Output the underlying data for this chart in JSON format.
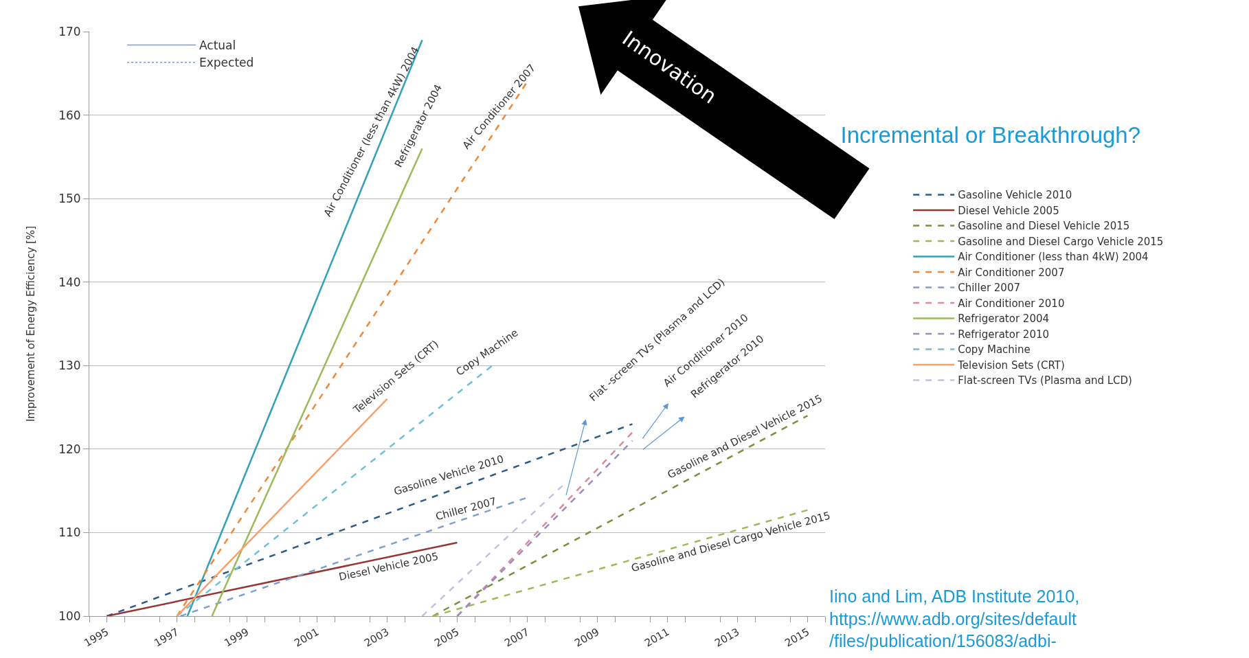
{
  "chart_data": {
    "type": "line",
    "title": "Incremental or Breakthrough?",
    "ylabel": "Improvement of Energy Efficiency [%]",
    "xlim": [
      1994.5,
      2015.5
    ],
    "xticks": [
      1995,
      1997,
      1999,
      2001,
      2003,
      2005,
      2007,
      2009,
      2011,
      2013,
      2015
    ],
    "ylim": [
      100,
      170
    ],
    "yticks": [
      100,
      110,
      120,
      130,
      140,
      150,
      160,
      170
    ],
    "grid": "y",
    "legend": "right",
    "marker": "none",
    "series": [
      {
        "name": "Gasoline Vehicle 2010",
        "color": "#2e5b8a",
        "line_style": "dashed",
        "x": [
          1995.0,
          2010.0
        ],
        "values": [
          100,
          123
        ]
      },
      {
        "name": "Diesel Vehicle 2005",
        "color": "#943634",
        "line_style": "solid",
        "x": [
          1995.0,
          2005.0
        ],
        "values": [
          100,
          108.8
        ]
      },
      {
        "name": "Gasoline and Diesel Vehicle 2015",
        "color": "#76923c",
        "line_style": "dashed",
        "x": [
          2004.3,
          2015.0
        ],
        "values": [
          100,
          124
        ]
      },
      {
        "name": "Gasoline and Diesel Cargo Vehicle 2015",
        "color": "#9bbb59",
        "line_style": "dashed",
        "x": [
          2004.3,
          2015.0
        ],
        "values": [
          100,
          112.7
        ]
      },
      {
        "name": "Air Conditioner (less than 4kW) 2004",
        "color": "#31a0b8",
        "line_style": "solid",
        "x": [
          1997.3,
          2004.0
        ],
        "values": [
          100,
          169
        ]
      },
      {
        "name": "Air Conditioner 2007",
        "color": "#f0883a",
        "line_style": "dashed",
        "x": [
          1997.0,
          2007.0
        ],
        "values": [
          100,
          164
        ]
      },
      {
        "name": "Chiller 2007",
        "color": "#7f9fd0",
        "line_style": "dashed",
        "x": [
          1997.1,
          2007.0
        ],
        "values": [
          100,
          114.2
        ]
      },
      {
        "name": "Air Conditioner 2010",
        "color": "#d98c98",
        "line_style": "dashed",
        "x": [
          2005.0,
          2010.0
        ],
        "values": [
          100,
          122
        ]
      },
      {
        "name": "Refrigerator 2004",
        "color": "#9bbb59",
        "line_style": "solid",
        "x": [
          1998.0,
          2004.0
        ],
        "values": [
          100,
          156
        ]
      },
      {
        "name": "Refrigerator 2010",
        "color": "#9c8bc0",
        "line_style": "dashed",
        "x": [
          2005.0,
          2010.0
        ],
        "values": [
          100,
          121
        ]
      },
      {
        "name": "Copy Machine",
        "color": "#6cc0d8",
        "line_style": "dashed",
        "x": [
          1997.0,
          2006.0
        ],
        "values": [
          100,
          130
        ]
      },
      {
        "name": "Television Sets (CRT)",
        "color": "#f7a06b",
        "line_style": "solid",
        "x": [
          1997.0,
          2003.0
        ],
        "values": [
          100,
          126
        ]
      },
      {
        "name": "Flat-screen TVs (Plasma and LCD)",
        "color": "#c6c0e0",
        "line_style": "dashed",
        "x": [
          2004.0,
          2008.0
        ],
        "values": [
          100,
          115.6
        ]
      }
    ],
    "annotations": [
      "Air Conditioner (less than 4kW) 2004",
      "Refrigerator 2004",
      "Air Conditioner 2007",
      "Television Sets (CRT)",
      "Copy Machine",
      "Gasoline Vehicle 2010",
      "Chiller 2007",
      "Diesel Vehicle 2005",
      "Flat -screen TVs (Plasma and LCD)",
      "Air Conditioner 2010",
      "Refrigerator 2010",
      "Gasoline and Diesel Vehicle 2015",
      "Gasoline and Diesel Cargo Vehicle 2015",
      "Actual",
      "Expected",
      "Innovation",
      "Iino and Lim, ADB Institute 2010, https://www.adb.org/sites/default/files/publication/156083/adbi-"
    ]
  }
}
